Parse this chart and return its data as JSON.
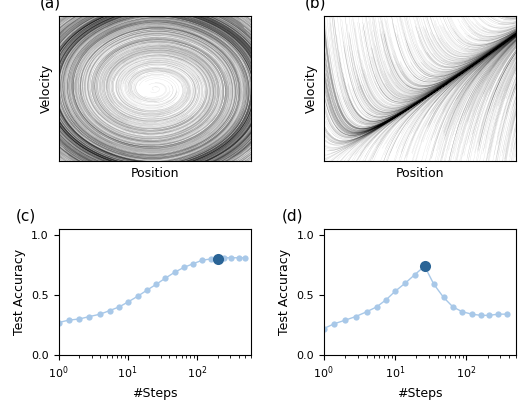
{
  "panel_labels": [
    "(a)",
    "(b)",
    "(c)",
    "(d)"
  ],
  "panel_label_fontsize": 11,
  "xlabel": "Position",
  "ylabel_top": "Velocity",
  "ylabel_bottom": "Test Accuracy",
  "xlabel_bottom": "#Steps",
  "c_steps": [
    1,
    1.4,
    2.0,
    2.8,
    4.0,
    5.5,
    7.5,
    10,
    14,
    19,
    26,
    35,
    48,
    65,
    88,
    120,
    160,
    200,
    250,
    310,
    400,
    500
  ],
  "c_values": [
    0.27,
    0.29,
    0.3,
    0.32,
    0.34,
    0.37,
    0.4,
    0.44,
    0.49,
    0.54,
    0.59,
    0.64,
    0.69,
    0.73,
    0.76,
    0.79,
    0.8,
    0.8,
    0.81,
    0.81,
    0.81,
    0.81
  ],
  "c_highlight_idx": 17,
  "d_steps": [
    1,
    1.4,
    2.0,
    2.8,
    4.0,
    5.5,
    7.5,
    10,
    14,
    19,
    26,
    35,
    48,
    65,
    88,
    120,
    160,
    210,
    280,
    370
  ],
  "d_values": [
    0.22,
    0.26,
    0.29,
    0.32,
    0.36,
    0.4,
    0.46,
    0.53,
    0.6,
    0.67,
    0.74,
    0.59,
    0.48,
    0.4,
    0.36,
    0.34,
    0.33,
    0.33,
    0.34,
    0.34
  ],
  "d_highlight_idx": 10,
  "dot_color_light": "#a8c8e8",
  "dot_color_dark": "#2a6496",
  "dot_size_light": 4.5,
  "dot_size_dark": 8.0,
  "ylim": [
    0.0,
    1.05
  ],
  "yticks": [
    0.0,
    0.5,
    1.0
  ],
  "line_color": "#a8c8e8",
  "line_width": 1.0
}
